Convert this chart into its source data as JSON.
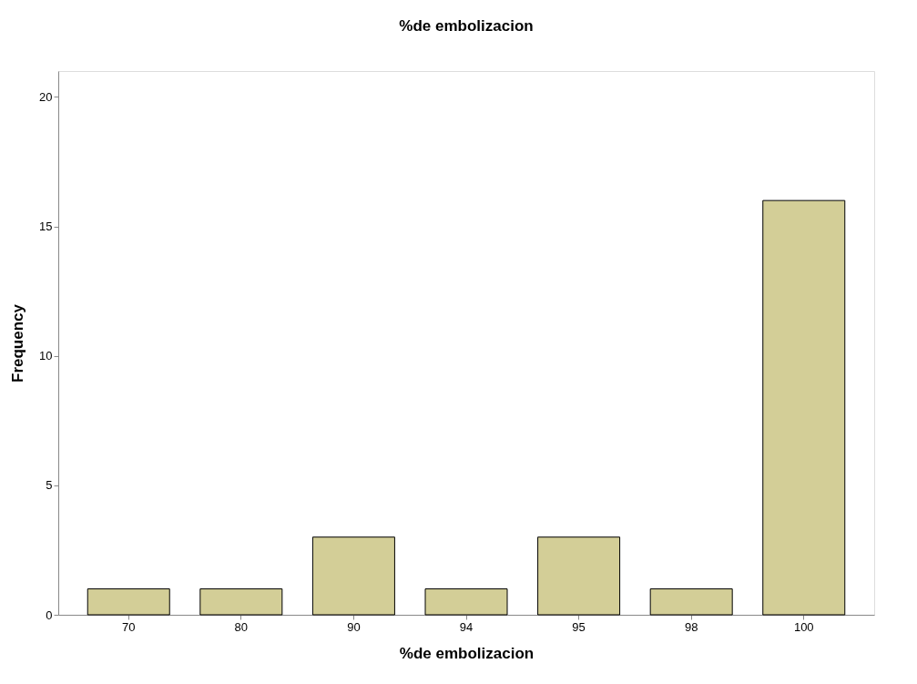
{
  "chart_data": {
    "type": "bar",
    "title": "%de embolizacion",
    "xlabel": "%de embolizacion",
    "ylabel": "Frequency",
    "categories": [
      "70",
      "80",
      "90",
      "94",
      "95",
      "98",
      "100"
    ],
    "values": [
      1,
      1,
      3,
      1,
      3,
      1,
      16
    ],
    "color": "#d3ce97",
    "ylim": [
      0,
      21
    ],
    "yticks": [
      0,
      5,
      10,
      15,
      20
    ],
    "grid": false
  }
}
